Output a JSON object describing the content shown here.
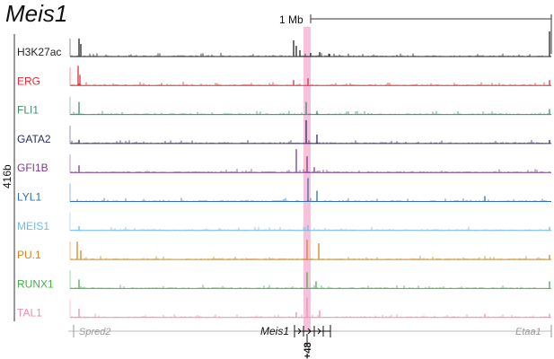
{
  "figure": {
    "title": "Meis1",
    "scale_label": "1 Mb",
    "group_label": "416b",
    "enhancer_label": "+48"
  },
  "tracks": [
    {
      "name": "H3K27ac",
      "color": "#222222"
    },
    {
      "name": "ERG",
      "color": "#d8313b"
    },
    {
      "name": "FLI1",
      "color": "#3d8f6e"
    },
    {
      "name": "GATA2",
      "color": "#2b2d6a"
    },
    {
      "name": "GFI1B",
      "color": "#7a3d8e"
    },
    {
      "name": "LYL1",
      "color": "#3171a8"
    },
    {
      "name": "MEIS1",
      "color": "#74b9e3"
    },
    {
      "name": "PU.1",
      "color": "#d2871d"
    },
    {
      "name": "RUNX1",
      "color": "#45b04a"
    },
    {
      "name": "TAL1",
      "color": "#ee8fb1"
    }
  ],
  "genes": [
    {
      "name": "Spred2",
      "color": "#999999"
    },
    {
      "name": "Meis1",
      "color": "#111111"
    },
    {
      "name": "Etaa1",
      "color": "#999999"
    }
  ],
  "colors": {
    "highlight": "#ee8fc0",
    "axis": "#333333"
  }
}
